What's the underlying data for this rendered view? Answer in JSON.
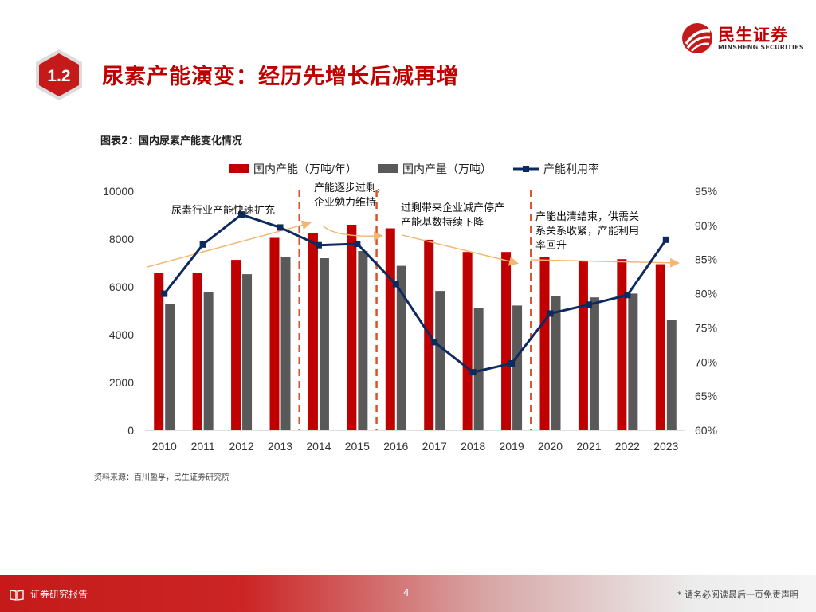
{
  "header": {
    "section_number": "1.2",
    "title": "尿素产能演变：经历先增长后减再增",
    "logo_cn": "民生证券",
    "logo_en": "MINSHENG SECURITIES"
  },
  "figure_title": "图表2：国内尿素产能变化情况",
  "source": "资料来源：百川盈孚，民生证券研究院",
  "chart_data": {
    "type": "bar+line",
    "categories": [
      "2010",
      "2011",
      "2012",
      "2013",
      "2014",
      "2015",
      "2016",
      "2017",
      "2018",
      "2019",
      "2020",
      "2021",
      "2022",
      "2023"
    ],
    "series": [
      {
        "name": "国内产能（万吨/年）",
        "type": "bar",
        "axis": "left",
        "color": "#c00000",
        "values": [
          6580,
          6600,
          7130,
          8050,
          8250,
          8600,
          8450,
          7970,
          7460,
          7460,
          7250,
          7080,
          7160,
          6950
        ]
      },
      {
        "name": "国内产量（万吨）",
        "type": "bar",
        "axis": "left",
        "color": "#595959",
        "values": [
          5270,
          5780,
          6530,
          7250,
          7200,
          7500,
          6880,
          5830,
          5130,
          5220,
          5600,
          5560,
          5720,
          4610
        ]
      },
      {
        "name": "产能利用率",
        "type": "line",
        "axis": "right",
        "color": "#0d2a5e",
        "values": [
          80.0,
          87.2,
          91.6,
          89.7,
          87.1,
          87.3,
          81.4,
          72.9,
          68.5,
          69.8,
          77.1,
          78.4,
          79.8,
          87.9
        ]
      }
    ],
    "y_left": {
      "min": 0,
      "max": 10000,
      "ticks": [
        "0",
        "2000",
        "4000",
        "6000",
        "8000",
        "10000"
      ]
    },
    "y_right": {
      "min": 60,
      "max": 95,
      "ticks": [
        "60%",
        "65%",
        "70%",
        "75%",
        "80%",
        "85%",
        "90%",
        "95%"
      ]
    },
    "dividers_after_index": [
      3.5,
      5.5,
      9.5
    ],
    "annotations": [
      {
        "lines": [
          "尿素行业产能快速扩充"
        ]
      },
      {
        "lines": [
          "产能逐步过剩，",
          "企业勉力维持"
        ]
      },
      {
        "lines": [
          "过剩带来企业减产停产",
          "产能基数持续下降"
        ]
      },
      {
        "lines": [
          "产能出清结束，供需关",
          "系关系收紧，产能利用",
          "率回升"
        ]
      }
    ]
  },
  "footer": {
    "report_type": "证券研究报告",
    "page": "4",
    "disclaimer": "* 请务必阅读最后一页免责声明"
  },
  "colors": {
    "accent": "#c00000",
    "gray_bar": "#595959",
    "line": "#0d2a5e",
    "trend": "#f3b773"
  }
}
